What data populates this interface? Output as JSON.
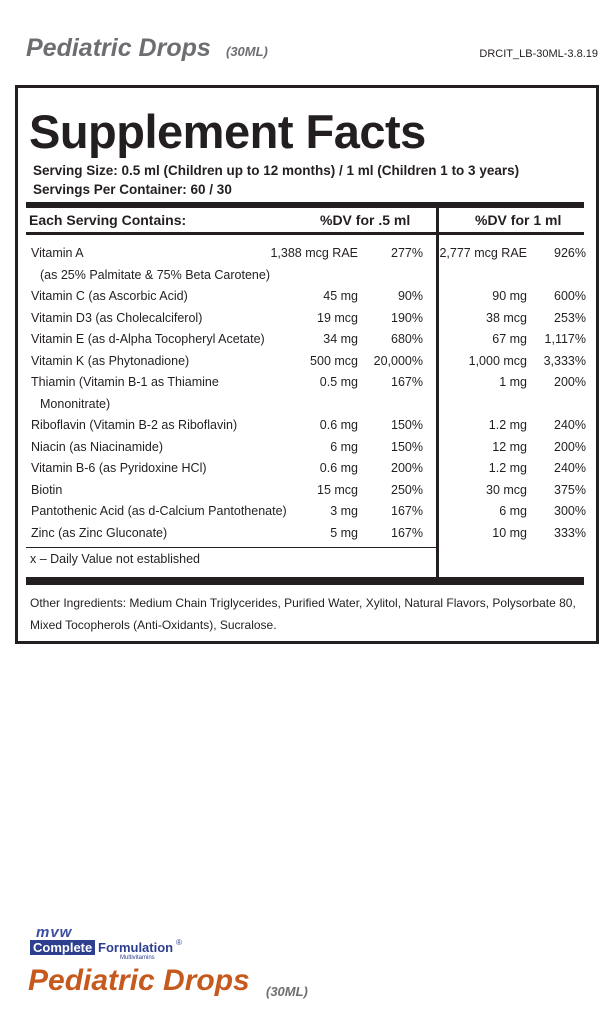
{
  "header": {
    "title": "Pediatric Drops",
    "size": "(30ML)",
    "code": "DRCIT_LB-30ML-3.8.19"
  },
  "facts": {
    "title": "Supplement Facts",
    "serving_size": "Serving Size: 0.5 ml (Children up to 12 months) / 1 ml (Children 1 to 3 years)",
    "servings": "Servings Per Container: 60 / 30",
    "columns": [
      "Each Serving Contains:",
      "%DV for .5 ml",
      "%DV for 1 ml"
    ],
    "rows": [
      {
        "name": "Vitamin A",
        "note": "(as 25% Palmitate & 75% Beta Carotene)",
        "amount_1": "1,388 mcg RAE",
        "dv_1": "277%",
        "amount_2": "2,777 mcg RAE",
        "dv_2": "926%"
      },
      {
        "name": "Vitamin C (as Ascorbic Acid)",
        "amount_1": "45 mg",
        "dv_1": "90%",
        "amount_2": "90 mg",
        "dv_2": "600%"
      },
      {
        "name": "Vitamin D3 (as Cholecalciferol)",
        "amount_1": "19 mcg",
        "dv_1": "190%",
        "amount_2": "38 mcg",
        "dv_2": "253%"
      },
      {
        "name": "Vitamin E (as d-Alpha Tocopheryl Acetate)",
        "amount_1": "34 mg",
        "dv_1": "680%",
        "amount_2": "67 mg",
        "dv_2": "1,117%"
      },
      {
        "name": "Vitamin K (as Phytonadione)",
        "amount_1": "500 mcg",
        "dv_1": "20,000%",
        "amount_2": "1,000 mcg",
        "dv_2": "3,333%"
      },
      {
        "name": "Thiamin (Vitamin B-1 as Thiamine",
        "note": "Mononitrate)",
        "amount_1": "0.5 mg",
        "dv_1": "167%",
        "amount_2": "1 mg",
        "dv_2": "200%"
      },
      {
        "name": "Riboflavin (Vitamin B-2 as Riboflavin)",
        "amount_1": "0.6 mg",
        "dv_1": "150%",
        "amount_2": "1.2 mg",
        "dv_2": "240%"
      },
      {
        "name": "Niacin (as Niacinamide)",
        "amount_1": "6 mg",
        "dv_1": "150%",
        "amount_2": "12 mg",
        "dv_2": "200%"
      },
      {
        "name": "Vitamin B-6 (as Pyridoxine HCl)",
        "amount_1": "0.6 mg",
        "dv_1": "200%",
        "amount_2": "1.2 mg",
        "dv_2": "240%"
      },
      {
        "name": "Biotin",
        "amount_1": "15 mcg",
        "dv_1": "250%",
        "amount_2": "30 mcg",
        "dv_2": "375%"
      },
      {
        "name": "Pantothenic Acid (as d-Calcium Pantothenate)",
        "amount_1": "3 mg",
        "dv_1": "167%",
        "amount_2": "6 mg",
        "dv_2": "300%"
      },
      {
        "name": "Zinc (as Zinc Gluconate)",
        "amount_1": "5 mg",
        "dv_1": "167%",
        "amount_2": "10 mg",
        "dv_2": "333%"
      }
    ],
    "footnote": "x – Daily Value not established",
    "other_ingredients": [
      "Other Ingredients: Medium Chain Triglycerides, Purified Water, Xylitol, Natural Flavors, Polysorbate 80,",
      "Mixed Tocopherols (Anti-Oxidants), Sucralose."
    ]
  },
  "footer": {
    "logo_top": "mvw",
    "logo_word_1": "Complete",
    "logo_word_2": "Formulation",
    "logo_mark": "®",
    "logo_sub": "Multivitamins",
    "title": "Pediatric Drops",
    "size": "(30ML)"
  }
}
